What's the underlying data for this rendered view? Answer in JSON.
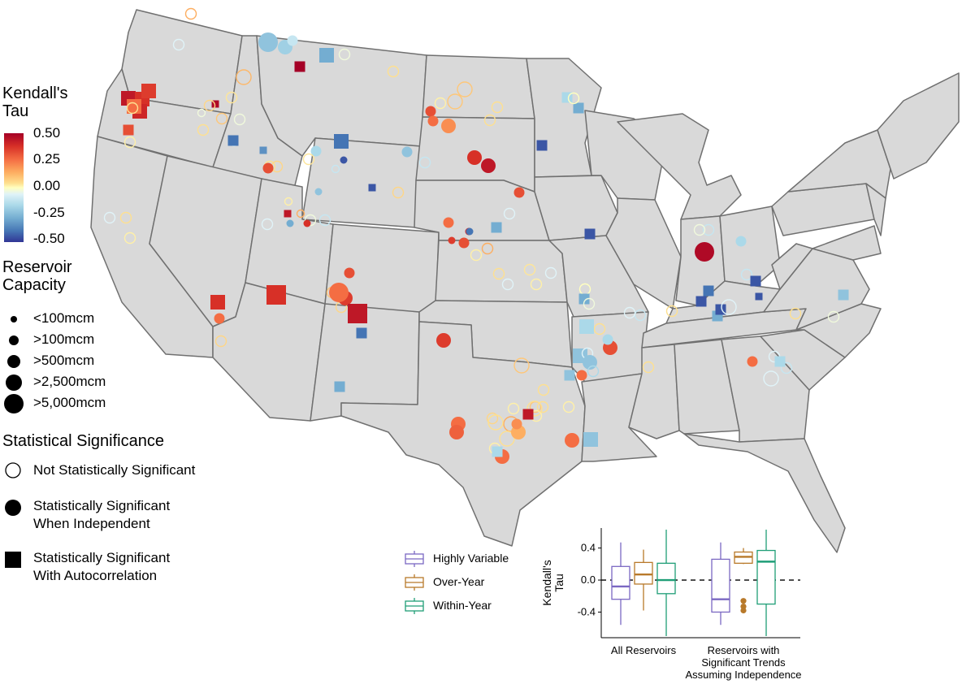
{
  "legend_tau": {
    "title_line1": "Kendall's",
    "title_line2": "Tau",
    "ticks": [
      "0.50",
      "0.25",
      "0.00",
      "-0.25",
      "-0.50"
    ]
  },
  "legend_capacity": {
    "title_line1": "Reservoir",
    "title_line2": "Capacity",
    "items": [
      "<100mcm",
      ">100mcm",
      ">500mcm",
      ">2,500mcm",
      ">5,000mcm"
    ]
  },
  "legend_significance": {
    "title": "Statistical Significance",
    "items": [
      {
        "line1": "Not Statistically Significant",
        "line2": ""
      },
      {
        "line1": "Statistically Significant",
        "line2": "When Independent"
      },
      {
        "line1": "Statistically Significant",
        "line2": "With Autocorrelation"
      }
    ]
  },
  "legend_boxplot": {
    "items": [
      {
        "label": "Highly Variable",
        "color": "#7b68c2"
      },
      {
        "label": "Over-Year",
        "color": "#b8792a"
      },
      {
        "label": "Within-Year",
        "color": "#1f9e77"
      }
    ]
  },
  "colors": {
    "map_fill": "#d9d9d9",
    "state_border": "#707070",
    "scale": [
      "#313695",
      "#4575b4",
      "#74add1",
      "#abd9e9",
      "#e0f3f8",
      "#ffffbf",
      "#fee090",
      "#fdae61",
      "#f46d43",
      "#d73027",
      "#a50026"
    ]
  },
  "chart_data": {
    "type": "box",
    "ylabel_line1": "Kendall's",
    "ylabel_line2": "Tau",
    "yticks": [
      "0.4",
      "0.0",
      "-0.4"
    ],
    "ylim": [
      -0.72,
      0.65
    ],
    "reference_line": 0.0,
    "groups": [
      {
        "label_lines": [
          "All Reservoirs"
        ]
      },
      {
        "label_lines": [
          "Reservoirs with",
          "Significant Trends",
          "Assuming Independence"
        ]
      }
    ],
    "series": [
      {
        "name": "Highly Variable",
        "boxes": [
          {
            "min": -0.56,
            "q1": -0.24,
            "median": -0.08,
            "q3": 0.17,
            "max": 0.47,
            "outliers": []
          },
          {
            "min": -0.56,
            "q1": -0.4,
            "median": -0.24,
            "q3": 0.26,
            "max": 0.47,
            "outliers": []
          }
        ]
      },
      {
        "name": "Over-Year",
        "boxes": [
          {
            "min": -0.38,
            "q1": -0.05,
            "median": 0.07,
            "q3": 0.22,
            "max": 0.38,
            "outliers": []
          },
          {
            "min": 0.2,
            "q1": 0.21,
            "median": 0.29,
            "q3": 0.35,
            "max": 0.4,
            "outliers": [
              -0.26,
              -0.33,
              -0.38
            ]
          }
        ]
      },
      {
        "name": "Within-Year",
        "boxes": [
          {
            "min": -0.7,
            "q1": -0.17,
            "median": 0.0,
            "q3": 0.21,
            "max": 0.63,
            "outliers": []
          },
          {
            "min": -0.7,
            "q1": -0.3,
            "median": 0.23,
            "q3": 0.37,
            "max": 0.63,
            "outliers": []
          }
        ]
      }
    ]
  },
  "reservoirs": [
    {
      "tau": 0.45,
      "cap": 3,
      "sig": 2
    },
    {
      "tau": 0.4,
      "cap": 3,
      "sig": 2
    },
    {
      "tau": 0.38,
      "cap": 3,
      "sig": 2
    },
    {
      "tau": 0.42,
      "cap": 3,
      "sig": 2
    },
    {
      "tau": 0.35,
      "cap": 2,
      "sig": 2
    },
    {
      "tau": 0.3,
      "cap": 3,
      "sig": 2
    },
    {
      "tau": 0.1,
      "cap": 2,
      "sig": 0
    },
    {
      "tau": 0.05,
      "cap": 2,
      "sig": 0
    },
    {
      "tau": 0.48,
      "cap": 1,
      "sig": 2
    },
    {
      "tau": 0.15,
      "cap": 2,
      "sig": 0
    },
    {
      "tau": -0.05,
      "cap": 2,
      "sig": 0
    },
    {
      "tau": -0.1,
      "cap": 1,
      "sig": 0
    },
    {
      "tau": -0.4,
      "cap": 2,
      "sig": 2
    },
    {
      "tau": 0.1,
      "cap": 2,
      "sig": 0
    },
    {
      "tau": -0.05,
      "cap": 1,
      "sig": 0
    },
    {
      "tau": 0.12,
      "cap": 2,
      "sig": 0
    },
    {
      "tau": 0.2,
      "cap": 2,
      "sig": 0
    },
    {
      "tau": -0.1,
      "cap": 2,
      "sig": 0
    },
    {
      "tau": -0.25,
      "cap": 4,
      "sig": 1
    },
    {
      "tau": -0.22,
      "cap": 3,
      "sig": 1
    },
    {
      "tau": -0.15,
      "cap": 2,
      "sig": 1
    },
    {
      "tau": -0.3,
      "cap": 3,
      "sig": 2
    },
    {
      "tau": 0.5,
      "cap": 2,
      "sig": 2
    },
    {
      "tau": -0.05,
      "cap": 2,
      "sig": 0
    },
    {
      "tau": 0.18,
      "cap": 3,
      "sig": 0
    },
    {
      "tau": 0.08,
      "cap": 2,
      "sig": 0
    },
    {
      "tau": -0.35,
      "cap": 1,
      "sig": 2
    },
    {
      "tau": 0.1,
      "cap": 2,
      "sig": 0
    },
    {
      "tau": 0.12,
      "cap": 2,
      "sig": 0
    },
    {
      "tau": -0.2,
      "cap": 2,
      "sig": 1
    },
    {
      "tau": -0.4,
      "cap": 3,
      "sig": 2
    },
    {
      "tau": -0.45,
      "cap": 1,
      "sig": 1
    },
    {
      "tau": -0.15,
      "cap": 1,
      "sig": 0
    },
    {
      "tau": 0.08,
      "cap": 2,
      "sig": 0
    },
    {
      "tau": -0.25,
      "cap": 1,
      "sig": 1
    },
    {
      "tau": 0.05,
      "cap": 1,
      "sig": 0
    },
    {
      "tau": 0.35,
      "cap": 2,
      "sig": 1
    },
    {
      "tau": 0.1,
      "cap": 2,
      "sig": 0
    },
    {
      "tau": -0.1,
      "cap": 2,
      "sig": 0
    },
    {
      "tau": 0.05,
      "cap": 2,
      "sig": 0
    },
    {
      "tau": -0.45,
      "cap": 1,
      "sig": 2
    },
    {
      "tau": 0.12,
      "cap": 2,
      "sig": 0
    },
    {
      "tau": -0.25,
      "cap": 2,
      "sig": 1
    },
    {
      "tau": -0.15,
      "cap": 2,
      "sig": 0
    },
    {
      "tau": 0.1,
      "cap": 2,
      "sig": 0
    },
    {
      "tau": 0.15,
      "cap": 3,
      "sig": 0
    },
    {
      "tau": 0.05,
      "cap": 2,
      "sig": 0
    },
    {
      "tau": 0.35,
      "cap": 2,
      "sig": 1
    },
    {
      "tau": 0.3,
      "cap": 2,
      "sig": 1
    },
    {
      "tau": 0.25,
      "cap": 3,
      "sig": 1
    },
    {
      "tau": 0.4,
      "cap": 3,
      "sig": 1
    },
    {
      "tau": 0.15,
      "cap": 3,
      "sig": 0
    },
    {
      "tau": 0.45,
      "cap": 3,
      "sig": 1
    },
    {
      "tau": 0.1,
      "cap": 2,
      "sig": 0
    },
    {
      "tau": -0.45,
      "cap": 2,
      "sig": 2
    },
    {
      "tau": -0.2,
      "cap": 2,
      "sig": 2
    },
    {
      "tau": -0.3,
      "cap": 2,
      "sig": 2
    },
    {
      "tau": 0.0,
      "cap": 2,
      "sig": 0
    },
    {
      "tau": -0.1,
      "cap": 2,
      "sig": 0
    },
    {
      "tau": 0.35,
      "cap": 2,
      "sig": 1
    },
    {
      "tau": 0.1,
      "cap": 2,
      "sig": 0
    },
    {
      "tau": 0.3,
      "cap": 2,
      "sig": 1
    },
    {
      "tau": 0.35,
      "cap": 2,
      "sig": 1
    },
    {
      "tau": 0.42,
      "cap": 1,
      "sig": 1
    },
    {
      "tau": 0.38,
      "cap": 1,
      "sig": 1
    },
    {
      "tau": -0.4,
      "cap": 1,
      "sig": 1
    },
    {
      "tau": 0.05,
      "cap": 2,
      "sig": 0
    },
    {
      "tau": 0.2,
      "cap": 2,
      "sig": 0
    },
    {
      "tau": -0.3,
      "cap": 2,
      "sig": 2
    },
    {
      "tau": 0.45,
      "cap": 3,
      "sig": 2
    },
    {
      "tau": 0.4,
      "cap": 3,
      "sig": 2
    },
    {
      "tau": 0.3,
      "cap": 2,
      "sig": 1
    },
    {
      "tau": 0.12,
      "cap": 2,
      "sig": 0
    },
    {
      "tau": -0.1,
      "cap": 2,
      "sig": 0
    },
    {
      "tau": -0.3,
      "cap": 1,
      "sig": 1
    },
    {
      "tau": -0.05,
      "cap": 2,
      "sig": 0
    },
    {
      "tau": -0.15,
      "cap": 2,
      "sig": 0
    },
    {
      "tau": 0.4,
      "cap": 1,
      "sig": 1
    },
    {
      "tau": 0.45,
      "cap": 1,
      "sig": 2
    },
    {
      "tau": 0.2,
      "cap": 1,
      "sig": 0
    },
    {
      "tau": 0.35,
      "cap": 2,
      "sig": 1
    },
    {
      "tau": 0.15,
      "cap": 2,
      "sig": 0
    },
    {
      "tau": 0.12,
      "cap": 2,
      "sig": 0
    },
    {
      "tau": 0.38,
      "cap": 3,
      "sig": 1
    },
    {
      "tau": 0.3,
      "cap": 4,
      "sig": 1
    },
    {
      "tau": 0.45,
      "cap": 4,
      "sig": 2
    },
    {
      "tau": -0.4,
      "cap": 2,
      "sig": 2
    },
    {
      "tau": -0.3,
      "cap": 2,
      "sig": 2
    },
    {
      "tau": 0.4,
      "cap": 4,
      "sig": 2
    },
    {
      "tau": 0.38,
      "cap": 3,
      "sig": 1
    },
    {
      "tau": 0.1,
      "cap": 2,
      "sig": 0
    },
    {
      "tau": 0.08,
      "cap": 2,
      "sig": 0
    },
    {
      "tau": -0.1,
      "cap": 2,
      "sig": 0
    },
    {
      "tau": -0.1,
      "cap": 2,
      "sig": 0
    },
    {
      "tau": 0.05,
      "cap": 2,
      "sig": 0
    },
    {
      "tau": 0.0,
      "cap": 2,
      "sig": 0
    },
    {
      "tau": -0.3,
      "cap": 2,
      "sig": 2
    },
    {
      "tau": -0.05,
      "cap": 2,
      "sig": 0
    },
    {
      "tau": 0.1,
      "cap": 2,
      "sig": 0
    },
    {
      "tau": -0.2,
      "cap": 3,
      "sig": 2
    },
    {
      "tau": -0.25,
      "cap": 3,
      "sig": 2
    },
    {
      "tau": -0.1,
      "cap": 2,
      "sig": 0
    },
    {
      "tau": -0.25,
      "cap": 3,
      "sig": 1
    },
    {
      "tau": -0.2,
      "cap": 2,
      "sig": 0
    },
    {
      "tau": -0.25,
      "cap": 2,
      "sig": 2
    },
    {
      "tau": 0.3,
      "cap": 2,
      "sig": 1
    },
    {
      "tau": 0.35,
      "cap": 3,
      "sig": 1
    },
    {
      "tau": -0.2,
      "cap": 2,
      "sig": 1
    },
    {
      "tau": 0.1,
      "cap": 2,
      "sig": 0
    },
    {
      "tau": -0.45,
      "cap": 2,
      "sig": 2
    },
    {
      "tau": 0.1,
      "cap": 2,
      "sig": 0
    },
    {
      "tau": -0.15,
      "cap": 2,
      "sig": 0
    },
    {
      "tau": -0.15,
      "cap": 2,
      "sig": 0
    },
    {
      "tau": -0.1,
      "cap": 2,
      "sig": 0
    },
    {
      "tau": -0.05,
      "cap": 2,
      "sig": 0
    },
    {
      "tau": 0.48,
      "cap": 4,
      "sig": 1
    },
    {
      "tau": -0.45,
      "cap": 2,
      "sig": 2
    },
    {
      "tau": -0.4,
      "cap": 2,
      "sig": 2
    },
    {
      "tau": -0.3,
      "cap": 2,
      "sig": 2
    },
    {
      "tau": -0.45,
      "cap": 2,
      "sig": 2
    },
    {
      "tau": -0.1,
      "cap": 3,
      "sig": 0
    },
    {
      "tau": -0.2,
      "cap": 2,
      "sig": 1
    },
    {
      "tau": -0.15,
      "cap": 2,
      "sig": 0
    },
    {
      "tau": -0.45,
      "cap": 2,
      "sig": 2
    },
    {
      "tau": -0.45,
      "cap": 1,
      "sig": 2
    },
    {
      "tau": -0.25,
      "cap": 2,
      "sig": 2
    },
    {
      "tau": 0.1,
      "cap": 2,
      "sig": 0
    },
    {
      "tau": -0.05,
      "cap": 2,
      "sig": 0
    },
    {
      "tau": -0.1,
      "cap": 2,
      "sig": 0
    },
    {
      "tau": -0.15,
      "cap": 2,
      "sig": 0
    },
    {
      "tau": -0.1,
      "cap": 3,
      "sig": 0
    },
    {
      "tau": 0.3,
      "cap": 2,
      "sig": 1
    },
    {
      "tau": -0.2,
      "cap": 2,
      "sig": 2
    },
    {
      "tau": 0.15,
      "cap": 3,
      "sig": 0
    },
    {
      "tau": 0.1,
      "cap": 2,
      "sig": 0
    },
    {
      "tau": 0.15,
      "cap": 2,
      "sig": 0
    },
    {
      "tau": 0.1,
      "cap": 3,
      "sig": 0
    },
    {
      "tau": 0.05,
      "cap": 2,
      "sig": 0
    },
    {
      "tau": 0.05,
      "cap": 2,
      "sig": 0
    },
    {
      "tau": 0.1,
      "cap": 2,
      "sig": 0
    },
    {
      "tau": 0.05,
      "cap": 2,
      "sig": 0
    },
    {
      "tau": 0.2,
      "cap": 3,
      "sig": 0
    },
    {
      "tau": 0.1,
      "cap": 3,
      "sig": 0
    },
    {
      "tau": 0.05,
      "cap": 2,
      "sig": 0
    },
    {
      "tau": 0.3,
      "cap": 3,
      "sig": 1
    },
    {
      "tau": 0.2,
      "cap": 3,
      "sig": 1
    },
    {
      "tau": 0.3,
      "cap": 3,
      "sig": 1
    },
    {
      "tau": -0.25,
      "cap": 3,
      "sig": 2
    },
    {
      "tau": 0.45,
      "cap": 2,
      "sig": 2
    },
    {
      "tau": 0.25,
      "cap": 2,
      "sig": 1
    },
    {
      "tau": -0.2,
      "cap": 2,
      "sig": 2
    },
    {
      "tau": 0.12,
      "cap": 2,
      "sig": 0
    },
    {
      "tau": 0.3,
      "cap": 3,
      "sig": 1
    },
    {
      "tau": 0.32,
      "cap": 3,
      "sig": 1
    },
    {
      "tau": 0.1,
      "cap": 3,
      "sig": 0
    }
  ]
}
